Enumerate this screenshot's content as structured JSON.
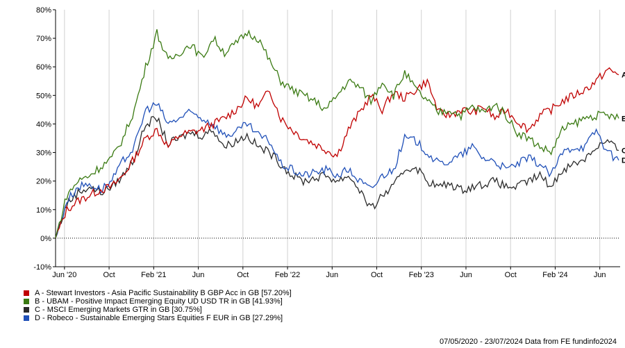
{
  "chart_data": {
    "type": "line",
    "title": "",
    "xlabel": "",
    "ylabel": "",
    "ylim": [
      -10,
      80
    ],
    "yticks": [
      "-10%",
      "0%",
      "10%",
      "20%",
      "30%",
      "40%",
      "50%",
      "60%",
      "70%",
      "80%"
    ],
    "ytick_values": [
      -10,
      0,
      10,
      20,
      30,
      40,
      50,
      60,
      70,
      80
    ],
    "xtick_labels": [
      "Jun '20",
      "Oct",
      "Feb '21",
      "Jun",
      "Oct",
      "Feb '22",
      "Jun",
      "Oct",
      "Feb '23",
      "Jun",
      "Oct",
      "Feb '24",
      "Jun"
    ],
    "xtick_months": [
      0.8,
      4.8,
      8.8,
      12.8,
      16.8,
      20.8,
      24.8,
      28.8,
      32.8,
      36.8,
      40.8,
      44.8,
      48.8
    ],
    "x_unit": "months since 07/05/2020",
    "x_range": [
      0,
      50.5
    ],
    "grid": "vertical",
    "legend_placement": "bottom-left",
    "series": [
      {
        "name": "A - Stewart Investors - Asia Pacific Sustainability B GBP Acc in GB [57.20%]",
        "tag": "A",
        "color": "#c00000",
        "values": [
          0,
          10,
          13,
          15,
          17,
          18,
          22,
          28,
          35,
          38,
          32,
          36,
          37,
          38,
          40,
          42,
          45,
          49,
          46,
          52,
          42,
          38,
          35,
          33,
          31,
          29,
          38,
          44,
          50,
          45,
          51,
          49,
          52,
          55,
          44,
          43,
          45,
          44,
          46,
          42,
          45,
          41,
          38,
          43,
          45,
          48,
          50,
          52,
          55,
          59,
          57.2
        ]
      },
      {
        "name": "B - UBAM - Positive Impact Emerging Equity UD USD TR in GB [41.93%]",
        "tag": "B",
        "color": "#3a7a12",
        "values": [
          0,
          15,
          20,
          22,
          25,
          28,
          35,
          45,
          60,
          72,
          62,
          65,
          68,
          63,
          70,
          65,
          68,
          72,
          70,
          62,
          55,
          52,
          50,
          48,
          45,
          50,
          55,
          53,
          48,
          55,
          50,
          58,
          52,
          48,
          44,
          45,
          43,
          46,
          44,
          47,
          43,
          37,
          35,
          32,
          30,
          38,
          40,
          42,
          43,
          43,
          41.93
        ]
      },
      {
        "name": "C - MSCI Emerging Markets GTR in GB [30.75%]",
        "tag": "C",
        "color": "#2b2b2b",
        "values": [
          0,
          12,
          16,
          18,
          16,
          18,
          22,
          28,
          40,
          42,
          33,
          35,
          37,
          36,
          38,
          32,
          34,
          36,
          32,
          30,
          26,
          22,
          20,
          21,
          22,
          20,
          22,
          17,
          10,
          15,
          18,
          24,
          25,
          20,
          18,
          19,
          17,
          18,
          19,
          20,
          18,
          18,
          20,
          22,
          18,
          24,
          26,
          28,
          32,
          34,
          30.75
        ]
      },
      {
        "name": "D - Robeco - Sustainable Emerging Stars Equities F EUR in GB [27.29%]",
        "tag": "D",
        "color": "#2050b8",
        "values": [
          0,
          13,
          18,
          19,
          17,
          20,
          27,
          32,
          45,
          47,
          40,
          42,
          44,
          42,
          40,
          36,
          37,
          40,
          36,
          34,
          26,
          24,
          22,
          23,
          24,
          22,
          24,
          20,
          17,
          22,
          24,
          35,
          34,
          30,
          26,
          27,
          29,
          32,
          28,
          27,
          24,
          26,
          28,
          26,
          22,
          30,
          32,
          32,
          38,
          30,
          27.29
        ]
      }
    ]
  },
  "footer": "07/05/2020 - 23/07/2024 Data from FE fundinfo2024"
}
